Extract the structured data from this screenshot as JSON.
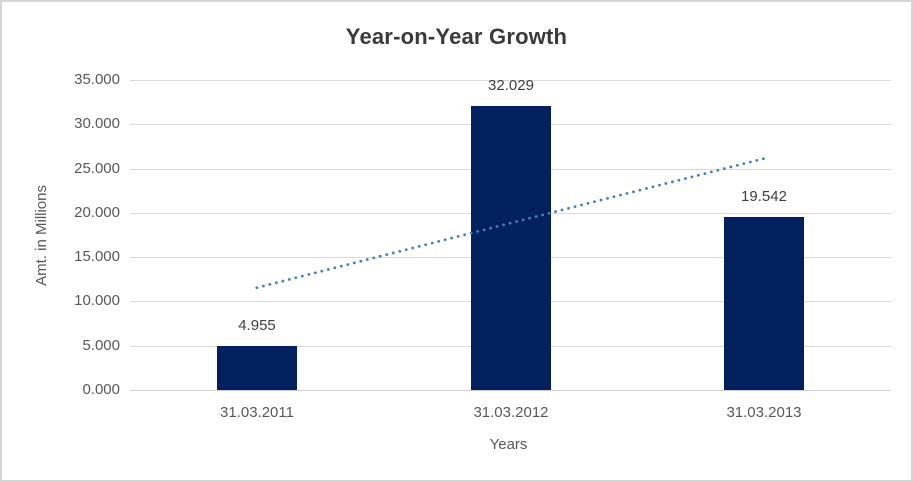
{
  "chart_data": {
    "type": "bar",
    "title": "Year-on-Year Growth",
    "xlabel": "Years",
    "ylabel": "Amt. in Millions",
    "categories": [
      "31.03.2011",
      "31.03.2012",
      "31.03.2013"
    ],
    "values": [
      4955,
      32029,
      19542
    ],
    "value_labels": [
      "4.955",
      "32.029",
      "19.542"
    ],
    "ylim": [
      0,
      35000
    ],
    "ytick_step": 5000,
    "ytick_labels": [
      "0.000",
      "5.000",
      "10.000",
      "15.000",
      "20.000",
      "25.000",
      "30.000",
      "35.000"
    ],
    "grid": true,
    "legend": "none",
    "trendline": {
      "type": "linear",
      "style": "dotted",
      "start_value": 11549,
      "end_value": 26136
    },
    "colors": {
      "bar": "#03215f",
      "trendline": "#4a7ebb",
      "title_text": "#3a3a3a",
      "axis_text": "#595959",
      "data_label_text": "#404040",
      "gridline": "#d9d9d9",
      "baseline": "#cfcfcf"
    }
  }
}
